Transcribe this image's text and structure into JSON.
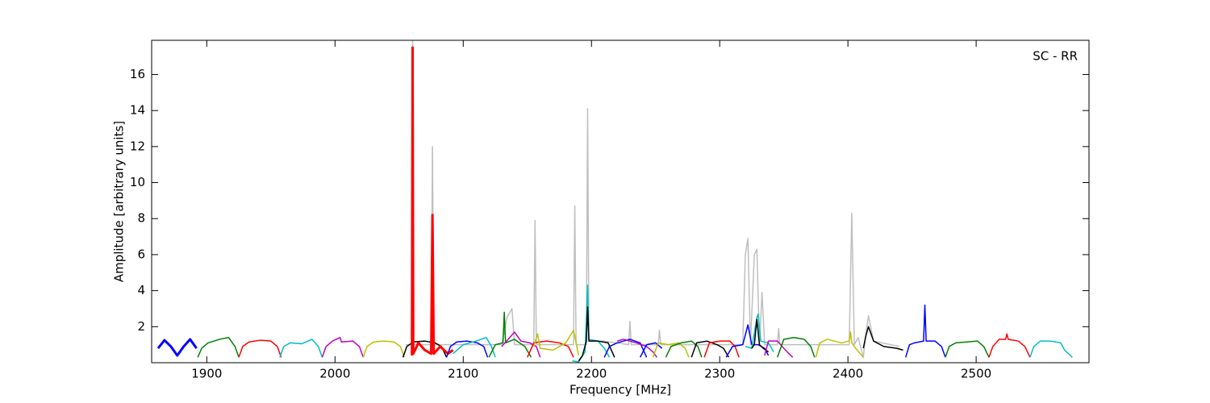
{
  "chart_data": {
    "type": "line",
    "annotation": "SC - RR",
    "xlabel": "Frequency [MHz]",
    "ylabel": "Amplitude [arbitrary units]",
    "xlim": [
      1857,
      2588
    ],
    "ylim": [
      0,
      17.9
    ],
    "xticks": [
      1900,
      2000,
      2100,
      2200,
      2300,
      2400,
      2500
    ],
    "yticks": [
      2,
      4,
      6,
      8,
      10,
      12,
      14,
      16
    ],
    "series": [
      {
        "color": "#bfbfbf",
        "width": 1.5,
        "x": [
          2055,
          2060,
          2060.5,
          2061,
          2075,
          2076,
          2077,
          2130,
          2134,
          2138,
          2140,
          2155,
          2156,
          2157,
          2186,
          2187,
          2188,
          2196,
          2197,
          2198,
          2210,
          2229,
          2230,
          2231,
          2252,
          2253,
          2254,
          2318,
          2320,
          2322,
          2324,
          2327,
          2329,
          2331,
          2333,
          2335,
          2345,
          2346,
          2347,
          2401,
          2403,
          2405,
          2408,
          2412,
          2414,
          2416,
          2420,
          2440
        ],
        "values": [
          1.0,
          1.0,
          17.9,
          1.0,
          1.0,
          12.0,
          1.0,
          1.0,
          2.5,
          3.0,
          1.0,
          1.0,
          7.9,
          1.0,
          1.0,
          8.7,
          1.0,
          1.0,
          14.1,
          1.2,
          1.2,
          1.0,
          2.3,
          1.0,
          1.0,
          1.8,
          1.0,
          1.0,
          6.0,
          6.9,
          1.0,
          6.0,
          6.3,
          1.0,
          3.9,
          1.0,
          1.0,
          1.9,
          1.0,
          1.0,
          8.3,
          1.0,
          1.4,
          0.3,
          1.6,
          2.6,
          1.2,
          0.9
        ]
      },
      {
        "color": "#0000ff",
        "width": 3,
        "x": [
          1862,
          1867,
          1872,
          1877,
          1882,
          1887,
          1892
        ],
        "values": [
          0.8,
          1.25,
          0.9,
          0.4,
          0.9,
          1.3,
          0.8
        ]
      },
      {
        "color": "#008000",
        "width": 1.5,
        "x": [
          1893,
          1896,
          1901,
          1910,
          1917,
          1922,
          1925
        ],
        "values": [
          0.3,
          0.8,
          1.1,
          1.3,
          1.4,
          0.9,
          0.3
        ]
      },
      {
        "color": "#ff0000",
        "width": 1.5,
        "x": [
          1925,
          1928,
          1933,
          1942,
          1950,
          1955,
          1958
        ],
        "values": [
          0.3,
          0.9,
          1.15,
          1.25,
          1.2,
          0.9,
          0.3
        ]
      },
      {
        "color": "#00bfbf",
        "width": 1.5,
        "x": [
          1957,
          1960,
          1965,
          1974,
          1982,
          1987,
          1990
        ],
        "values": [
          0.3,
          0.9,
          1.1,
          1.05,
          1.3,
          0.9,
          0.3
        ]
      },
      {
        "color": "#bf00bf",
        "width": 1.5,
        "x": [
          1990,
          1993,
          1998,
          2004,
          2005,
          2014,
          2019,
          2022
        ],
        "values": [
          0.3,
          0.9,
          1.2,
          1.4,
          1.15,
          1.2,
          0.9,
          0.3
        ]
      },
      {
        "color": "#bfbf00",
        "width": 1.5,
        "x": [
          2022,
          2025,
          2030,
          2038,
          2046,
          2051,
          2054
        ],
        "values": [
          0.3,
          0.9,
          1.15,
          1.2,
          1.15,
          0.9,
          0.3
        ]
      },
      {
        "color": "#000000",
        "width": 1.5,
        "x": [
          2053,
          2056,
          2061,
          2070,
          2078,
          2083,
          2087
        ],
        "values": [
          0.3,
          0.9,
          1.15,
          1.2,
          1.1,
          0.9,
          0.3
        ]
      },
      {
        "color": "#ff0000",
        "width": 3,
        "x": [
          2060,
          2060.5,
          2061,
          2065,
          2070,
          2075,
          2076,
          2077,
          2082,
          2088,
          2092
        ],
        "values": [
          0.4,
          17.5,
          0.5,
          1.1,
          0.7,
          0.5,
          8.2,
          0.5,
          0.9,
          0.5,
          0.7
        ]
      },
      {
        "color": "#0000ff",
        "width": 1.5,
        "x": [
          2087,
          2090,
          2095,
          2103,
          2111,
          2116,
          2119
        ],
        "values": [
          0.3,
          0.9,
          1.15,
          1.2,
          1.1,
          0.9,
          0.3
        ]
      },
      {
        "color": "#00bfbf",
        "width": 1.5,
        "x": [
          2092,
          2100,
          2110,
          2118,
          2122,
          2125
        ],
        "values": [
          0.5,
          1.0,
          1.2,
          1.4,
          0.9,
          0.3
        ]
      },
      {
        "color": "#008000",
        "width": 1.5,
        "x": [
          2120,
          2125,
          2131,
          2132,
          2133,
          2140,
          2148,
          2153
        ],
        "values": [
          0.3,
          1.0,
          1.1,
          2.8,
          1.1,
          1.3,
          0.9,
          0.3
        ]
      },
      {
        "color": "#bf00bf",
        "width": 1.5,
        "x": [
          2130,
          2135,
          2140,
          2145,
          2152,
          2157,
          2160
        ],
        "values": [
          0.9,
          1.3,
          1.7,
          1.2,
          1.1,
          0.9,
          0.3
        ]
      },
      {
        "color": "#ff0000",
        "width": 1.5,
        "x": [
          2150,
          2155,
          2165,
          2175,
          2182,
          2186
        ],
        "values": [
          0.3,
          1.1,
          1.2,
          1.1,
          0.9,
          0.3
        ]
      },
      {
        "color": "#bfbf00",
        "width": 1.5,
        "x": [
          2155,
          2158,
          2160,
          2170,
          2180,
          2186,
          2190
        ],
        "values": [
          0.9,
          1.6,
          0.8,
          0.7,
          1.1,
          1.8,
          0.4
        ]
      },
      {
        "color": "#00bfbf",
        "width": 1.5,
        "x": [
          2185,
          2190,
          2195,
          2197,
          2198,
          2205,
          2210,
          2214
        ],
        "values": [
          0.1,
          0.05,
          0.6,
          4.3,
          1.3,
          1.2,
          0.8,
          0.3
        ]
      },
      {
        "color": "#000000",
        "width": 1.5,
        "x": [
          2190,
          2193,
          2196,
          2197,
          2198,
          2205,
          2213,
          2218
        ],
        "values": [
          0.1,
          0.4,
          1.2,
          3.1,
          1.2,
          1.2,
          1.1,
          0.3
        ]
      },
      {
        "color": "#0000ff",
        "width": 1.5,
        "x": [
          2210,
          2214,
          2220,
          2230,
          2238,
          2243
        ],
        "values": [
          0.3,
          0.9,
          1.1,
          1.3,
          1.1,
          0.3
        ]
      },
      {
        "color": "#bf00bf",
        "width": 1.5,
        "x": [
          2220,
          2225,
          2235,
          2243,
          2248,
          2251
        ],
        "values": [
          1.2,
          1.3,
          1.1,
          0.9,
          0.6,
          0.3
        ]
      },
      {
        "color": "#0000ff",
        "width": 1.5,
        "x": [
          2238,
          2243,
          2250,
          2255
        ],
        "values": [
          0.3,
          1.0,
          1.1,
          0.8
        ]
      },
      {
        "color": "#bfbf00",
        "width": 1.5,
        "x": [
          2248,
          2252,
          2260,
          2268,
          2273,
          2276
        ],
        "values": [
          0.3,
          1.1,
          1.0,
          1.1,
          0.8,
          0.3
        ]
      },
      {
        "color": "#008000",
        "width": 1.5,
        "x": [
          2258,
          2262,
          2270,
          2278,
          2283,
          2286
        ],
        "values": [
          0.3,
          0.9,
          1.1,
          1.2,
          0.9,
          0.3
        ]
      },
      {
        "color": "#000000",
        "width": 1.5,
        "x": [
          2278,
          2282,
          2290,
          2298,
          2303,
          2307
        ],
        "values": [
          0.3,
          1.1,
          1.2,
          1.0,
          0.8,
          0.3
        ]
      },
      {
        "color": "#ff0000",
        "width": 1.5,
        "x": [
          2288,
          2292,
          2300,
          2308,
          2312,
          2315
        ],
        "values": [
          0.3,
          1.1,
          1.2,
          1.2,
          0.9,
          0.3
        ]
      },
      {
        "color": "#0000ff",
        "width": 1.5,
        "x": [
          2305,
          2310,
          2318,
          2322,
          2325,
          2330,
          2335,
          2338
        ],
        "values": [
          0.3,
          0.9,
          1.0,
          2.1,
          1.0,
          1.0,
          0.8,
          0.4
        ]
      },
      {
        "color": "#00bfbf",
        "width": 1.5,
        "x": [
          2320,
          2325,
          2329,
          2330,
          2332,
          2338,
          2342
        ],
        "values": [
          0.9,
          0.8,
          2.5,
          2.7,
          1.2,
          1.1,
          0.6
        ]
      },
      {
        "color": "#000000",
        "width": 1.5,
        "x": [
          2325,
          2327,
          2329,
          2331,
          2334,
          2338
        ],
        "values": [
          0.8,
          1.0,
          2.4,
          1.0,
          0.8,
          0.6
        ]
      },
      {
        "color": "#bf00bf",
        "width": 1.5,
        "x": [
          2335,
          2338,
          2345,
          2350,
          2354,
          2357
        ],
        "values": [
          0.4,
          1.2,
          1.2,
          0.8,
          0.5,
          0.3
        ]
      },
      {
        "color": "#008000",
        "width": 1.5,
        "x": [
          2345,
          2350,
          2358,
          2366,
          2371,
          2374
        ],
        "values": [
          0.3,
          1.3,
          1.4,
          1.3,
          0.9,
          0.3
        ]
      },
      {
        "color": "#bfbf00",
        "width": 1.5,
        "x": [
          2375,
          2378,
          2384,
          2395,
          2401,
          2402,
          2403,
          2406,
          2412
        ],
        "values": [
          0.3,
          1.1,
          1.3,
          1.1,
          1.2,
          1.7,
          1.1,
          0.8,
          0.3
        ]
      },
      {
        "color": "#000000",
        "width": 1.5,
        "x": [
          2412,
          2414,
          2416,
          2420,
          2428,
          2438,
          2443
        ],
        "values": [
          0.8,
          1.5,
          2.0,
          1.2,
          0.9,
          0.8,
          0.7
        ]
      },
      {
        "color": "#0000ff",
        "width": 1.5,
        "x": [
          2445,
          2448,
          2452,
          2459,
          2460,
          2461,
          2468,
          2473,
          2476
        ],
        "values": [
          0.3,
          1.0,
          1.1,
          1.2,
          3.2,
          1.2,
          1.2,
          0.9,
          0.3
        ]
      },
      {
        "color": "#008000",
        "width": 1.5,
        "x": [
          2476,
          2479,
          2484,
          2493,
          2501,
          2506,
          2510
        ],
        "values": [
          0.3,
          0.9,
          1.1,
          1.15,
          1.2,
          0.9,
          0.3
        ]
      },
      {
        "color": "#ff0000",
        "width": 1.5,
        "x": [
          2510,
          2513,
          2518,
          2523,
          2524,
          2525,
          2533,
          2538,
          2542
        ],
        "values": [
          0.3,
          0.9,
          1.3,
          1.3,
          1.6,
          1.3,
          1.2,
          0.9,
          0.3
        ]
      },
      {
        "color": "#00bfbf",
        "width": 1.5,
        "x": [
          2542,
          2545,
          2550,
          2558,
          2566,
          2569,
          2575
        ],
        "values": [
          0.3,
          0.9,
          1.2,
          1.2,
          1.1,
          0.7,
          0.3
        ]
      }
    ]
  }
}
